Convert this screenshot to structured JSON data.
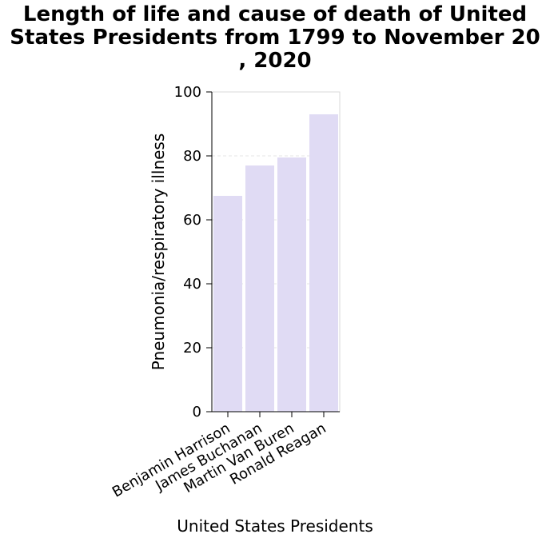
{
  "chart_data": {
    "type": "bar",
    "title_lines": [
      "Length of life and cause of death of United",
      "States Presidents from 1799 to November 20",
      ", 2020"
    ],
    "xlabel": "United States Presidents",
    "ylabel": "Pneumonia/respiratory illness",
    "categories": [
      "Benjamin Harrison",
      "James Buchanan",
      "Martin Van Buren",
      "Ronald Reagan"
    ],
    "values": [
      67.5,
      77,
      79.5,
      93
    ],
    "ylim": [
      0,
      100
    ],
    "yticks": [
      "0",
      "20",
      "40",
      "60",
      "80",
      "100"
    ],
    "grid": true,
    "bar_color": "#e0dbf4",
    "axis_color": "#000000"
  }
}
